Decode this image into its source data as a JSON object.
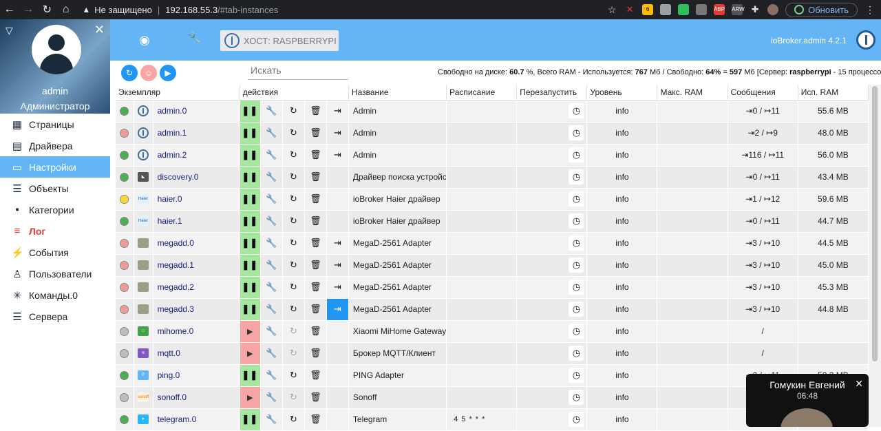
{
  "browser": {
    "insecure_label": "Не защищено",
    "url_host": "192.168.55.3",
    "url_path": "/#tab-instances",
    "update_label": "Обновить",
    "ext_badge": "6",
    "ext_abp": "ABP",
    "ext_arw": "ARW"
  },
  "profile": {
    "name": "admin",
    "role": "Администратор"
  },
  "nav": [
    {
      "label": "Страницы",
      "icon": "grid-icon",
      "glyph": "▦"
    },
    {
      "label": "Драйвера",
      "icon": "store-icon",
      "glyph": "▤"
    },
    {
      "label": "Настройки",
      "icon": "settings-icon",
      "glyph": "▭",
      "active": true
    },
    {
      "label": "Объекты",
      "icon": "list-icon",
      "glyph": "☰"
    },
    {
      "label": "Категории",
      "icon": "categories-icon",
      "glyph": "▪"
    },
    {
      "label": "Лог",
      "icon": "log-icon",
      "glyph": "≡",
      "log": true
    },
    {
      "label": "События",
      "icon": "flash-icon",
      "glyph": "⚡"
    },
    {
      "label": "Пользователи",
      "icon": "person-icon",
      "glyph": "♙"
    },
    {
      "label": "Команды.0",
      "icon": "snowflake-icon",
      "glyph": "✳"
    },
    {
      "label": "Сервера",
      "icon": "servers-icon",
      "glyph": "☰"
    }
  ],
  "header": {
    "host_label": "ХОСТ: RASPBERRYPI",
    "version": "ioBroker.admin 4.2.1"
  },
  "toolbar": {
    "search_placeholder": "Искать",
    "stats": {
      "disk_label": "Свободно на диске: ",
      "disk_value": "60.7",
      "disk_unit": " %, Всего RAM - Используется: ",
      "ram_used": "767",
      "ram_used_unit": " Мб / Свободно: ",
      "ram_free_pct": "64%",
      "eq": " = ",
      "ram_free": "597",
      "server_label": " Мб [Сервер: ",
      "server": "raspberrypi",
      "proc": " - 15 процессо"
    }
  },
  "columns": [
    "Экземпляр",
    "действия",
    "Название",
    "Расписание",
    "Перезапустить",
    "Уровень",
    "Макс. RAM",
    "Сообщения",
    "Исп. RAM"
  ],
  "colors": {
    "green": "#4caf50",
    "red": "#ef9a9a",
    "yellow": "#fdd835",
    "grey": "#bdbdbd",
    "accent": "#64b5f6"
  },
  "rows": [
    {
      "status": "green",
      "logo": "iobroker-logo-icon",
      "instance": "admin.0",
      "state": "pause",
      "restart": true,
      "link": true,
      "name": "Admin",
      "schedule": "",
      "level": "info",
      "messages": "⇥0 / ↦11",
      "ram": "55.6 MB"
    },
    {
      "status": "red",
      "logo": "iobroker-logo-icon",
      "instance": "admin.1",
      "state": "pause",
      "restart": true,
      "link": true,
      "name": "Admin",
      "schedule": "",
      "level": "info",
      "messages": "⇥2 / ↦9",
      "ram": "48.0 MB"
    },
    {
      "status": "green",
      "logo": "iobroker-logo-icon",
      "instance": "admin.2",
      "state": "pause",
      "restart": true,
      "link": true,
      "name": "Admin",
      "schedule": "",
      "level": "info",
      "messages": "⇥116 / ↦11",
      "ram": "56.0 MB"
    },
    {
      "status": "green",
      "logo": "discovery-logo-icon",
      "instance": "discovery.0",
      "state": "pause",
      "restart": true,
      "link": false,
      "name": "Драйвер поиска устройст",
      "schedule": "",
      "level": "info",
      "messages": "⇥0 / ↦11",
      "ram": "43.4 MB"
    },
    {
      "status": "yellow",
      "logo": "haier-logo-icon",
      "instance": "haier.0",
      "state": "pause",
      "restart": true,
      "link": false,
      "name": "ioBroker Haier драйвер",
      "schedule": "",
      "level": "info",
      "messages": "⇥1 / ↦12",
      "ram": "59.6 MB"
    },
    {
      "status": "green",
      "logo": "haier-logo-icon",
      "instance": "haier.1",
      "state": "pause",
      "restart": true,
      "link": false,
      "name": "ioBroker Haier драйвер",
      "schedule": "",
      "level": "info",
      "messages": "⇥0 / ↦11",
      "ram": "44.7 MB"
    },
    {
      "status": "red",
      "logo": "megad-logo-icon",
      "instance": "megadd.0",
      "state": "pause",
      "restart": true,
      "link": true,
      "name": "MegaD-2561 Adapter",
      "schedule": "",
      "level": "info",
      "messages": "⇥3 / ↦10",
      "ram": "44.5 MB"
    },
    {
      "status": "red",
      "logo": "megad-logo-icon",
      "instance": "megadd.1",
      "state": "pause",
      "restart": true,
      "link": true,
      "name": "MegaD-2561 Adapter",
      "schedule": "",
      "level": "info",
      "messages": "⇥3 / ↦10",
      "ram": "45.0 MB"
    },
    {
      "status": "red",
      "logo": "megad-logo-icon",
      "instance": "megadd.2",
      "state": "pause",
      "restart": true,
      "link": true,
      "name": "MegaD-2561 Adapter",
      "schedule": "",
      "level": "info",
      "messages": "⇥3 / ↦10",
      "ram": "45.3 MB"
    },
    {
      "status": "red",
      "logo": "megad-logo-icon",
      "instance": "megadd.3",
      "state": "pause",
      "restart": true,
      "link": true,
      "link_hl": true,
      "name": "MegaD-2561 Adapter",
      "schedule": "",
      "level": "info",
      "messages": "⇥3 / ↦10",
      "ram": "44.8 MB"
    },
    {
      "status": "grey",
      "logo": "mihome-logo-icon",
      "instance": "mihome.0",
      "state": "play",
      "restart": false,
      "link": false,
      "name": "Xiaomi MiHome Gateway",
      "schedule": "",
      "level": "info",
      "messages": "/",
      "ram": ""
    },
    {
      "status": "grey",
      "logo": "mqtt-logo-icon",
      "instance": "mqtt.0",
      "state": "play",
      "restart": false,
      "link": false,
      "name": "Брокер MQTT/Клиент",
      "schedule": "",
      "level": "info",
      "messages": "/",
      "ram": ""
    },
    {
      "status": "green",
      "logo": "ping-logo-icon",
      "instance": "ping.0",
      "state": "pause",
      "restart": true,
      "link": false,
      "name": "PING Adapter",
      "schedule": "",
      "level": "info",
      "messages": "⇥0 / ↦11",
      "ram": "50.3 MB"
    },
    {
      "status": "grey",
      "logo": "sonoff-logo-icon",
      "instance": "sonoff.0",
      "state": "play",
      "restart": false,
      "link": false,
      "name": "Sonoff",
      "schedule": "",
      "level": "info",
      "messages": "",
      "ram": ""
    },
    {
      "status": "green",
      "logo": "telegram-logo-icon",
      "instance": "telegram.0",
      "state": "pause",
      "restart": true,
      "link": false,
      "name": "Telegram",
      "schedule": "4 5 * * *",
      "level": "info",
      "messages": "",
      "ram": ""
    }
  ],
  "pip": {
    "name": "Гомукин Евгений",
    "time": "06:48"
  }
}
